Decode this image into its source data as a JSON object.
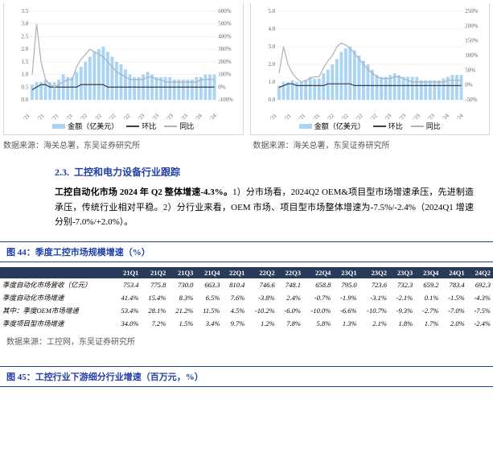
{
  "chartA": {
    "y1_ticks": [
      0,
      0.5,
      1.0,
      1.5,
      2.0,
      2.5,
      3.0,
      3.5
    ],
    "y2_ticks": [
      -100,
      0,
      100,
      200,
      300,
      400,
      500,
      600
    ],
    "x_labels": [
      "Jan/21",
      "Apr/21",
      "Jul/21",
      "Oct/21",
      "Jan/22",
      "Apr/22",
      "Jul/22",
      "Oct/22",
      "Jan/23",
      "Apr/23",
      "Jul/23",
      "Oct/23",
      "Jan/24",
      "Apr/24"
    ],
    "bars": [
      0.6,
      0.7,
      0.7,
      0.8,
      0.7,
      0.7,
      0.8,
      1.0,
      0.9,
      0.9,
      1.1,
      1.3,
      1.5,
      1.7,
      1.9,
      2.0,
      2.1,
      1.9,
      1.7,
      1.5,
      1.4,
      1.2,
      1.0,
      0.9,
      0.9,
      1.0,
      1.1,
      1.0,
      0.9,
      0.9,
      0.9,
      0.9,
      0.8,
      0.8,
      0.8,
      0.8,
      0.8,
      0.9,
      0.9,
      1.0,
      1.0,
      1.0
    ],
    "line_huan": [
      0.4,
      0.5,
      0.6,
      0.6,
      0.5,
      0.5,
      0.5,
      0.5,
      0.5,
      0.5,
      0.5,
      0.6,
      0.6,
      0.6,
      0.6,
      0.6,
      0.6,
      0.5,
      0.5,
      0.5,
      0.5,
      0.5,
      0.5,
      0.5,
      0.5,
      0.5,
      0.5,
      0.5,
      0.5,
      0.5,
      0.5,
      0.5,
      0.5,
      0.5,
      0.5,
      0.5,
      0.5,
      0.5,
      0.5,
      0.5,
      0.5,
      0.5
    ],
    "line_tong": [
      1.0,
      3.0,
      1.5,
      0.8,
      0.6,
      0.5,
      0.6,
      0.7,
      0.8,
      0.8,
      1.3,
      1.6,
      1.8,
      2.0,
      1.9,
      1.8,
      1.7,
      1.5,
      1.3,
      1.1,
      1.0,
      0.9,
      0.8,
      0.8,
      0.8,
      0.8,
      0.9,
      0.9,
      0.8,
      0.8,
      0.7,
      0.7,
      0.7,
      0.7,
      0.7,
      0.7,
      0.7,
      0.7,
      0.8,
      0.8,
      0.8,
      0.8
    ],
    "bar_color": "#a9d4f5",
    "huan_color": "#3b3b3b",
    "tong_color": "#b0b0b0",
    "bg": "#ffffff",
    "grid": "#e6e6e6",
    "legend": [
      "金额（亿美元）",
      "环比",
      "同比"
    ]
  },
  "chartB": {
    "y1_ticks": [
      0,
      1.0,
      2.0,
      3.0,
      4.0,
      5.0
    ],
    "y2_ticks": [
      -50,
      0,
      50,
      100,
      150,
      200,
      250
    ],
    "x_labels": [
      "Jan/21",
      "Apr/21",
      "Jul/21",
      "Oct/21",
      "Jan/22",
      "Apr/22",
      "Jul/22",
      "Oct/22",
      "Jan/23",
      "Apr/23",
      "Jul/23",
      "Oct/23",
      "Jan/24",
      "Apr/24"
    ],
    "bars": [
      0.8,
      1.0,
      1.0,
      1.1,
      1.0,
      1.0,
      1.1,
      1.3,
      1.2,
      1.2,
      1.5,
      1.7,
      2.0,
      2.3,
      2.7,
      2.9,
      3.0,
      2.8,
      2.5,
      2.2,
      2.0,
      1.7,
      1.4,
      1.3,
      1.3,
      1.4,
      1.5,
      1.4,
      1.3,
      1.3,
      1.3,
      1.3,
      1.1,
      1.1,
      1.1,
      1.1,
      1.1,
      1.2,
      1.3,
      1.4,
      1.4,
      1.4
    ],
    "line_huan": [
      0.7,
      0.8,
      0.9,
      0.9,
      0.8,
      0.8,
      0.8,
      0.8,
      0.8,
      0.8,
      0.8,
      0.9,
      0.9,
      0.9,
      0.9,
      0.9,
      0.9,
      0.8,
      0.8,
      0.8,
      0.8,
      0.8,
      0.8,
      0.8,
      0.8,
      0.8,
      0.8,
      0.8,
      0.8,
      0.8,
      0.8,
      0.8,
      0.8,
      0.8,
      0.8,
      0.8,
      0.8,
      0.8,
      0.8,
      0.8,
      0.8,
      0.8
    ],
    "line_tong": [
      1.5,
      3.0,
      2.0,
      1.5,
      1.2,
      1.0,
      1.1,
      1.2,
      1.3,
      1.3,
      1.8,
      2.2,
      2.5,
      3.0,
      3.2,
      3.1,
      2.9,
      2.6,
      2.3,
      2.0,
      1.7,
      1.5,
      1.3,
      1.2,
      1.2,
      1.2,
      1.3,
      1.3,
      1.2,
      1.1,
      1.0,
      1.0,
      1.0,
      1.0,
      1.0,
      1.0,
      1.0,
      1.0,
      1.1,
      1.1,
      1.1,
      1.1
    ],
    "bar_color": "#a9d4f5",
    "huan_color": "#3b3b3b",
    "tong_color": "#b0b0b0",
    "bg": "#ffffff",
    "grid": "#e6e6e6",
    "legend": [
      "金额（亿美元）",
      "环比",
      "同比"
    ]
  },
  "sourceA": "数据来源：海关总署，东吴证券研究所",
  "sourceB": "数据来源：海关总署，东吴证券研究所",
  "section_no": "2.3.",
  "section_title": "工控和电力设备行业跟踪",
  "para_lead": "工控自动化市场 2024 年 Q2 整体增速-4.3%。",
  "para_body": "1）分市场看，2024Q2 OEM&项目型市场增速承压，先进制造承压，传统行业相对平稳。2）分行业来看，OEM 市场、项目型市场整体增速为-7.5%/-2.4%（2024Q1 增速分别-7.0%/+2.0%）。",
  "fig44_title": "图 44：季度工控市场规模增速（%）",
  "fig45_title": "图 45：工控行业下游细分行业增速（百万元，%）",
  "table_header": [
    "",
    "21Q1",
    "21Q2",
    "21Q3",
    "21Q4",
    "22Q1",
    "22Q2",
    "22Q3",
    "22Q4",
    "23Q1",
    "23Q2",
    "23Q3",
    "23Q4",
    "24Q1",
    "24Q2"
  ],
  "table_rows": [
    [
      "季度自动化市场营收（亿元）",
      "753.4",
      "775.8",
      "730.0",
      "663.3",
      "810.4",
      "746.6",
      "748.1",
      "658.8",
      "795.0",
      "723.6",
      "732.3",
      "659.2",
      "783.4",
      "692.3"
    ],
    [
      "季度自动化市场增速",
      "41.4%",
      "15.4%",
      "8.3%",
      "6.5%",
      "7.6%",
      "-3.8%",
      "2.4%",
      "-0.7%",
      "-1.9%",
      "-3.1%",
      "-2.1%",
      "0.1%",
      "-1.5%",
      "-4.3%"
    ],
    [
      "其中：季度OEM市场增速",
      "53.4%",
      "28.1%",
      "21.2%",
      "11.5%",
      "4.5%",
      "-10.2%",
      "-6.0%",
      "-10.0%",
      "-6.6%",
      "-10.7%",
      "-9.3%",
      "-2.7%",
      "-7.0%",
      "-7.5%"
    ],
    [
      "季度项目型市场增速",
      "34.0%",
      "7.2%",
      "1.5%",
      "3.4%",
      "9.7%",
      "1.2%",
      "7.8%",
      "5.8%",
      "1.3%",
      "2.1%",
      "1.8%",
      "1.7%",
      "2.0%",
      "-2.4%"
    ]
  ],
  "table_source": "数据来源：工控网，东吴证券研究所"
}
